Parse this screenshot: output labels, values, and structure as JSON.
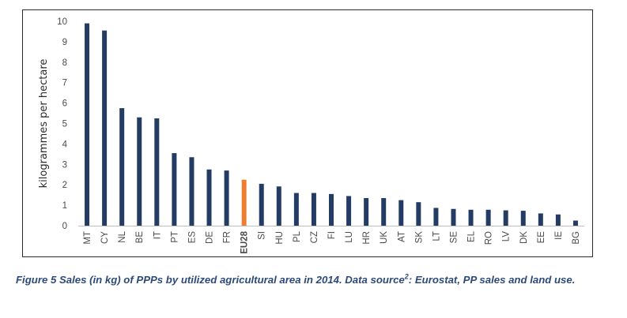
{
  "chart_data": {
    "type": "bar",
    "ylabel": "kilogrammes per hectare",
    "xlabel": "",
    "ylim": [
      0,
      10
    ],
    "yticks": [
      "0",
      "1",
      "2",
      "3",
      "4",
      "5",
      "6",
      "7",
      "8",
      "9",
      "10"
    ],
    "grid": false,
    "categories": [
      "MT",
      "CY",
      "NL",
      "BE",
      "IT",
      "PT",
      "ES",
      "DE",
      "FR",
      "EU28",
      "SI",
      "HU",
      "PL",
      "CZ",
      "FI",
      "LU",
      "HR",
      "UK",
      "AT",
      "SK",
      "LT",
      "SE",
      "EL",
      "RO",
      "LV",
      "DK",
      "EE",
      "IE",
      "BG"
    ],
    "values": [
      9.9,
      9.55,
      5.75,
      5.3,
      5.25,
      3.55,
      3.35,
      2.75,
      2.7,
      2.25,
      2.05,
      1.92,
      1.6,
      1.6,
      1.55,
      1.45,
      1.35,
      1.35,
      1.25,
      1.15,
      0.87,
      0.82,
      0.78,
      0.78,
      0.75,
      0.73,
      0.6,
      0.55,
      0.25
    ],
    "colors": {
      "default": "#243b63",
      "highlight": "#ed7d31",
      "highlight_category": "EU28"
    }
  },
  "caption": {
    "text": "Figure 5 Sales (in kg) of PPPs by utilized agricultural area in 2014. Data source",
    "superscript": "2",
    "text_after": ": Eurostat, PP sales and land use."
  }
}
